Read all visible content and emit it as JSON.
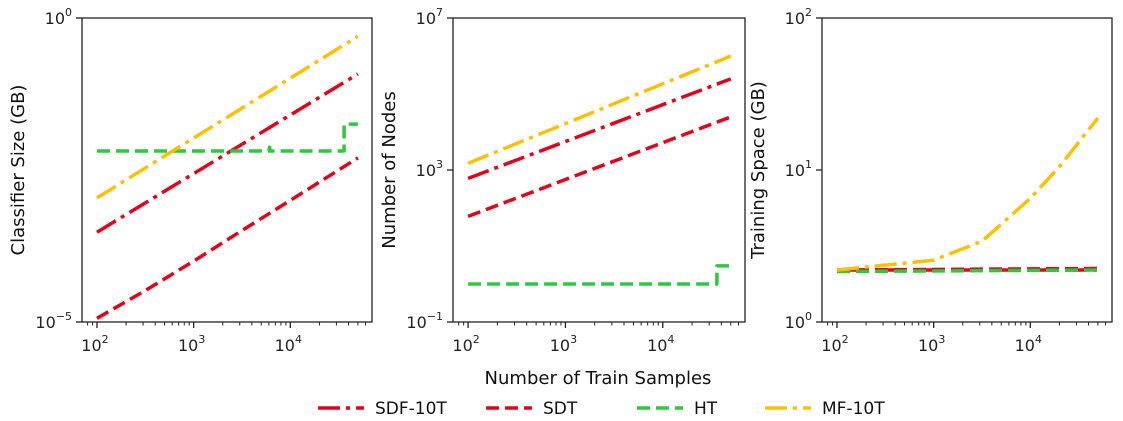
{
  "colors": {
    "SDF-10T": "#e3001b",
    "SDT": "#e3001b",
    "HT": "#2ec840",
    "MF-10T": "#ffc000",
    "axis": "#222222"
  },
  "figure": {
    "xlabel": "Number of Train Samples",
    "legend_placement": "bottom-center"
  },
  "chart_data": [
    {
      "type": "line",
      "ylabel": "Classifier Size (GB)",
      "xscale": "log",
      "yscale": "log",
      "xlim": [
        70,
        70000
      ],
      "ylim": [
        1e-05,
        1
      ],
      "xticks": [
        {
          "b": "10",
          "e": "2",
          "v": 100
        },
        {
          "b": "10",
          "e": "3",
          "v": 1000
        },
        {
          "b": "10",
          "e": "4",
          "v": 10000
        }
      ],
      "yticks": [
        {
          "b": "10",
          "e": "−5",
          "v": 1e-05
        },
        {
          "b": "10",
          "e": "0",
          "v": 1
        }
      ],
      "grid": false,
      "series": [
        {
          "name": "SDF-10T",
          "x": [
            100,
            50000
          ],
          "y": [
            0.0003,
            0.12
          ]
        },
        {
          "name": "SDT",
          "x": [
            100,
            316,
            1000,
            3162,
            10000,
            50000
          ],
          "y": [
            1.15e-05,
            3.3e-05,
            0.0001,
            0.00032,
            0.001,
            0.005
          ]
        },
        {
          "name": "HT",
          "x": [
            100,
            6000,
            6100,
            6200,
            36000,
            36000,
            50000
          ],
          "y": [
            0.0065,
            0.0065,
            0.0075,
            0.0065,
            0.0065,
            0.018,
            0.018
          ]
        },
        {
          "name": "MF-10T",
          "x": [
            100,
            50000
          ],
          "y": [
            0.0011,
            0.5
          ]
        }
      ]
    },
    {
      "type": "line",
      "ylabel": "Number of Nodes",
      "xscale": "log",
      "yscale": "log",
      "xlim": [
        70,
        70000
      ],
      "ylim": [
        0.1,
        10000000
      ],
      "xticks": [
        {
          "b": "10",
          "e": "2",
          "v": 100
        },
        {
          "b": "10",
          "e": "3",
          "v": 1000
        },
        {
          "b": "10",
          "e": "4",
          "v": 10000
        }
      ],
      "yticks": [
        {
          "b": "10",
          "e": "−1",
          "v": 0.1
        },
        {
          "b": "10",
          "e": "3",
          "v": 1000
        },
        {
          "b": "10",
          "e": "7",
          "v": 10000000
        }
      ],
      "grid": false,
      "series": [
        {
          "name": "SDF-10T",
          "x": [
            100,
            50000
          ],
          "y": [
            600,
            250000
          ]
        },
        {
          "name": "SDT",
          "x": [
            100,
            50000
          ],
          "y": [
            60,
            25000
          ]
        },
        {
          "name": "HT",
          "x": [
            100,
            36000,
            36000,
            50000
          ],
          "y": [
            1,
            1,
            3,
            3
          ]
        },
        {
          "name": "MF-10T",
          "x": [
            100,
            50000
          ],
          "y": [
            1500,
            1000000
          ]
        }
      ]
    },
    {
      "type": "line",
      "ylabel": "Training Space (GB)",
      "xscale": "log",
      "yscale": "log",
      "xlim": [
        70,
        70000
      ],
      "ylim": [
        1,
        100
      ],
      "xticks": [
        {
          "b": "10",
          "e": "2",
          "v": 100
        },
        {
          "b": "10",
          "e": "3",
          "v": 1000
        },
        {
          "b": "10",
          "e": "4",
          "v": 10000
        }
      ],
      "yticks": [
        {
          "b": "10",
          "e": "0",
          "v": 1
        },
        {
          "b": "10",
          "e": "1",
          "v": 10
        },
        {
          "b": "10",
          "e": "2",
          "v": 100
        }
      ],
      "grid": false,
      "series": [
        {
          "name": "SDF-10T",
          "x": [
            100,
            50000
          ],
          "y": [
            2.2,
            2.2
          ]
        },
        {
          "name": "SDT",
          "x": [
            100,
            50000
          ],
          "y": [
            2.2,
            2.25
          ]
        },
        {
          "name": "HT",
          "x": [
            100,
            50000
          ],
          "y": [
            2.15,
            2.2
          ]
        },
        {
          "name": "MF-10T",
          "x": [
            100,
            1000,
            3162,
            10000,
            20000,
            35000,
            50000
          ],
          "y": [
            2.2,
            2.55,
            3.4,
            6.5,
            10.5,
            16.5,
            22
          ]
        }
      ]
    }
  ],
  "legend": [
    {
      "name": "SDF-10T",
      "style": "dashdot"
    },
    {
      "name": "SDT",
      "style": "dashed"
    },
    {
      "name": "HT",
      "style": "dashed"
    },
    {
      "name": "MF-10T",
      "style": "dashdot"
    }
  ]
}
